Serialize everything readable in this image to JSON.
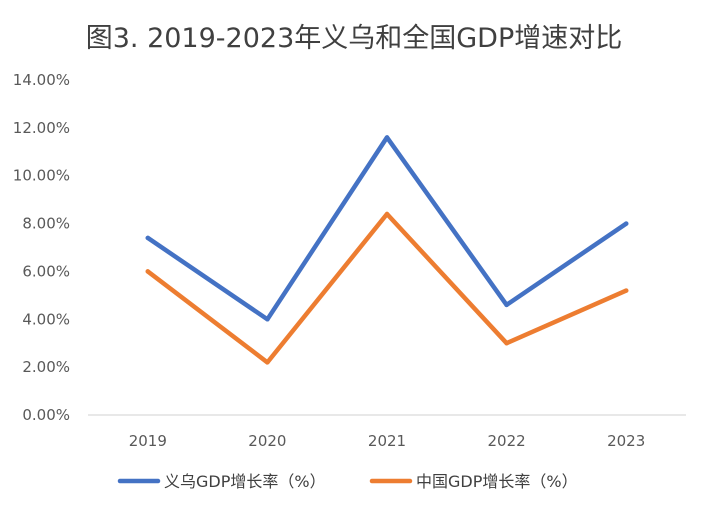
{
  "chart_data": {
    "type": "line",
    "title": "图3. 2019-2023年义乌和全国GDP增速对比",
    "xlabel": "",
    "ylabel": "",
    "categories": [
      "2019",
      "2020",
      "2021",
      "2022",
      "2023"
    ],
    "ylim": [
      0,
      14
    ],
    "yticks": [
      0,
      2,
      4,
      6,
      8,
      10,
      12,
      14
    ],
    "ytick_labels": [
      "0.00%",
      "2.00%",
      "4.00%",
      "6.00%",
      "8.00%",
      "10.00%",
      "12.00%",
      "14.00%"
    ],
    "grid": false,
    "legend_position": "bottom",
    "series": [
      {
        "name": "义乌GDP增长率（%）",
        "color": "#4472C4",
        "values": [
          7.4,
          4.0,
          11.6,
          4.6,
          8.0
        ]
      },
      {
        "name": "中国GDP增长率（%）",
        "color": "#ED7D31",
        "values": [
          6.0,
          2.2,
          8.4,
          3.0,
          5.2
        ]
      }
    ]
  }
}
